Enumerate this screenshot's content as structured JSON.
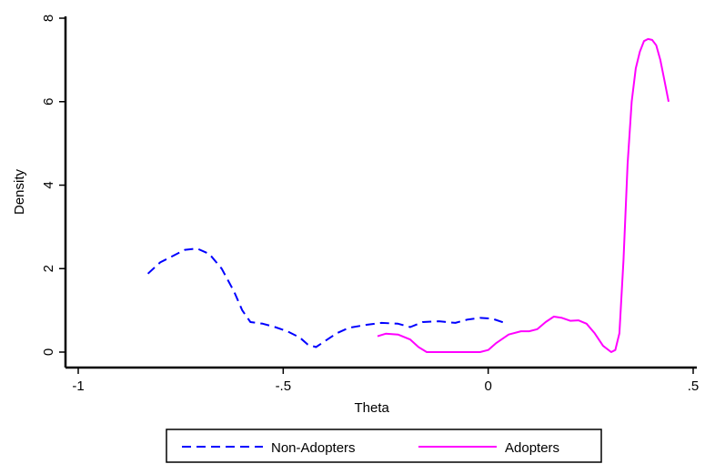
{
  "chart_data": {
    "type": "line",
    "title": "",
    "xlabel": "Theta",
    "ylabel": "Density",
    "xlim": [
      -1,
      0.5
    ],
    "ylim": [
      0,
      8
    ],
    "x_ticks": [
      {
        "value": -1,
        "label": "-1"
      },
      {
        "value": -0.5,
        "label": "-.5"
      },
      {
        "value": 0,
        "label": "0"
      },
      {
        "value": 0.5,
        "label": ".5"
      }
    ],
    "y_ticks": [
      {
        "value": 0,
        "label": "0"
      },
      {
        "value": 2,
        "label": "2"
      },
      {
        "value": 4,
        "label": "4"
      },
      {
        "value": 6,
        "label": "6"
      },
      {
        "value": 8,
        "label": "8"
      }
    ],
    "grid": false,
    "legend": "bottom",
    "series": [
      {
        "name": "Non-Adopters",
        "color": "#0000ff",
        "style": "dashed",
        "points": [
          [
            -0.83,
            1.88
          ],
          [
            -0.8,
            2.15
          ],
          [
            -0.77,
            2.3
          ],
          [
            -0.74,
            2.45
          ],
          [
            -0.71,
            2.48
          ],
          [
            -0.68,
            2.35
          ],
          [
            -0.65,
            2.0
          ],
          [
            -0.62,
            1.45
          ],
          [
            -0.6,
            1.0
          ],
          [
            -0.58,
            0.72
          ],
          [
            -0.55,
            0.68
          ],
          [
            -0.52,
            0.6
          ],
          [
            -0.49,
            0.5
          ],
          [
            -0.46,
            0.35
          ],
          [
            -0.44,
            0.18
          ],
          [
            -0.42,
            0.12
          ],
          [
            -0.4,
            0.25
          ],
          [
            -0.37,
            0.45
          ],
          [
            -0.34,
            0.58
          ],
          [
            -0.3,
            0.65
          ],
          [
            -0.26,
            0.7
          ],
          [
            -0.22,
            0.68
          ],
          [
            -0.19,
            0.6
          ],
          [
            -0.16,
            0.72
          ],
          [
            -0.12,
            0.74
          ],
          [
            -0.08,
            0.7
          ],
          [
            -0.05,
            0.78
          ],
          [
            -0.02,
            0.82
          ],
          [
            0.01,
            0.8
          ],
          [
            0.04,
            0.7
          ]
        ]
      },
      {
        "name": "Adopters",
        "color": "#ff00ff",
        "style": "solid",
        "points": [
          [
            -0.27,
            0.38
          ],
          [
            -0.25,
            0.44
          ],
          [
            -0.22,
            0.42
          ],
          [
            -0.19,
            0.3
          ],
          [
            -0.17,
            0.12
          ],
          [
            -0.15,
            0.0
          ],
          [
            -0.1,
            0.0
          ],
          [
            -0.05,
            0.0
          ],
          [
            -0.02,
            0.0
          ],
          [
            0.0,
            0.05
          ],
          [
            0.02,
            0.22
          ],
          [
            0.05,
            0.42
          ],
          [
            0.08,
            0.5
          ],
          [
            0.1,
            0.5
          ],
          [
            0.12,
            0.55
          ],
          [
            0.14,
            0.72
          ],
          [
            0.16,
            0.85
          ],
          [
            0.18,
            0.82
          ],
          [
            0.2,
            0.75
          ],
          [
            0.22,
            0.76
          ],
          [
            0.24,
            0.68
          ],
          [
            0.26,
            0.45
          ],
          [
            0.28,
            0.15
          ],
          [
            0.3,
            0.0
          ],
          [
            0.31,
            0.05
          ],
          [
            0.32,
            0.45
          ],
          [
            0.33,
            2.2
          ],
          [
            0.34,
            4.5
          ],
          [
            0.35,
            6.0
          ],
          [
            0.36,
            6.8
          ],
          [
            0.37,
            7.2
          ],
          [
            0.38,
            7.45
          ],
          [
            0.39,
            7.5
          ],
          [
            0.4,
            7.48
          ],
          [
            0.41,
            7.35
          ],
          [
            0.42,
            7.0
          ],
          [
            0.43,
            6.5
          ],
          [
            0.44,
            6.0
          ]
        ]
      }
    ]
  }
}
